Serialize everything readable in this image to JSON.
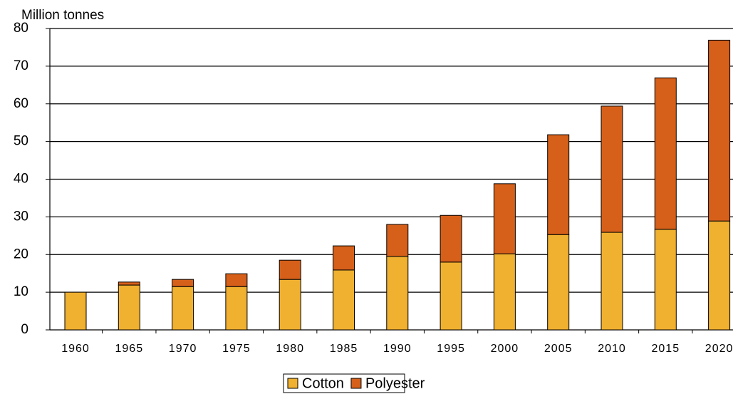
{
  "chart_data": {
    "type": "bar",
    "stacked": true,
    "y_label": "Million tonnes",
    "categories": [
      "1960",
      "1965",
      "1970",
      "1975",
      "1980",
      "1985",
      "1990",
      "1995",
      "2000",
      "2005",
      "2010",
      "2015",
      "2020"
    ],
    "series": [
      {
        "name": "Cotton",
        "color": "#f0b030",
        "values": [
          10.0,
          11.9,
          11.5,
          11.5,
          13.4,
          15.9,
          19.5,
          18.0,
          20.2,
          25.3,
          25.9,
          26.7,
          28.9
        ]
      },
      {
        "name": "Polyester",
        "color": "#d6601a",
        "values": [
          0,
          0.8,
          1.9,
          3.4,
          5.1,
          6.4,
          8.5,
          12.4,
          18.6,
          26.5,
          33.5,
          40.2,
          48.0
        ]
      }
    ],
    "ylim": [
      0,
      80
    ],
    "yticks": [
      0,
      10,
      20,
      30,
      40,
      50,
      60,
      70,
      80
    ],
    "grid": true,
    "legend": "bottom"
  }
}
